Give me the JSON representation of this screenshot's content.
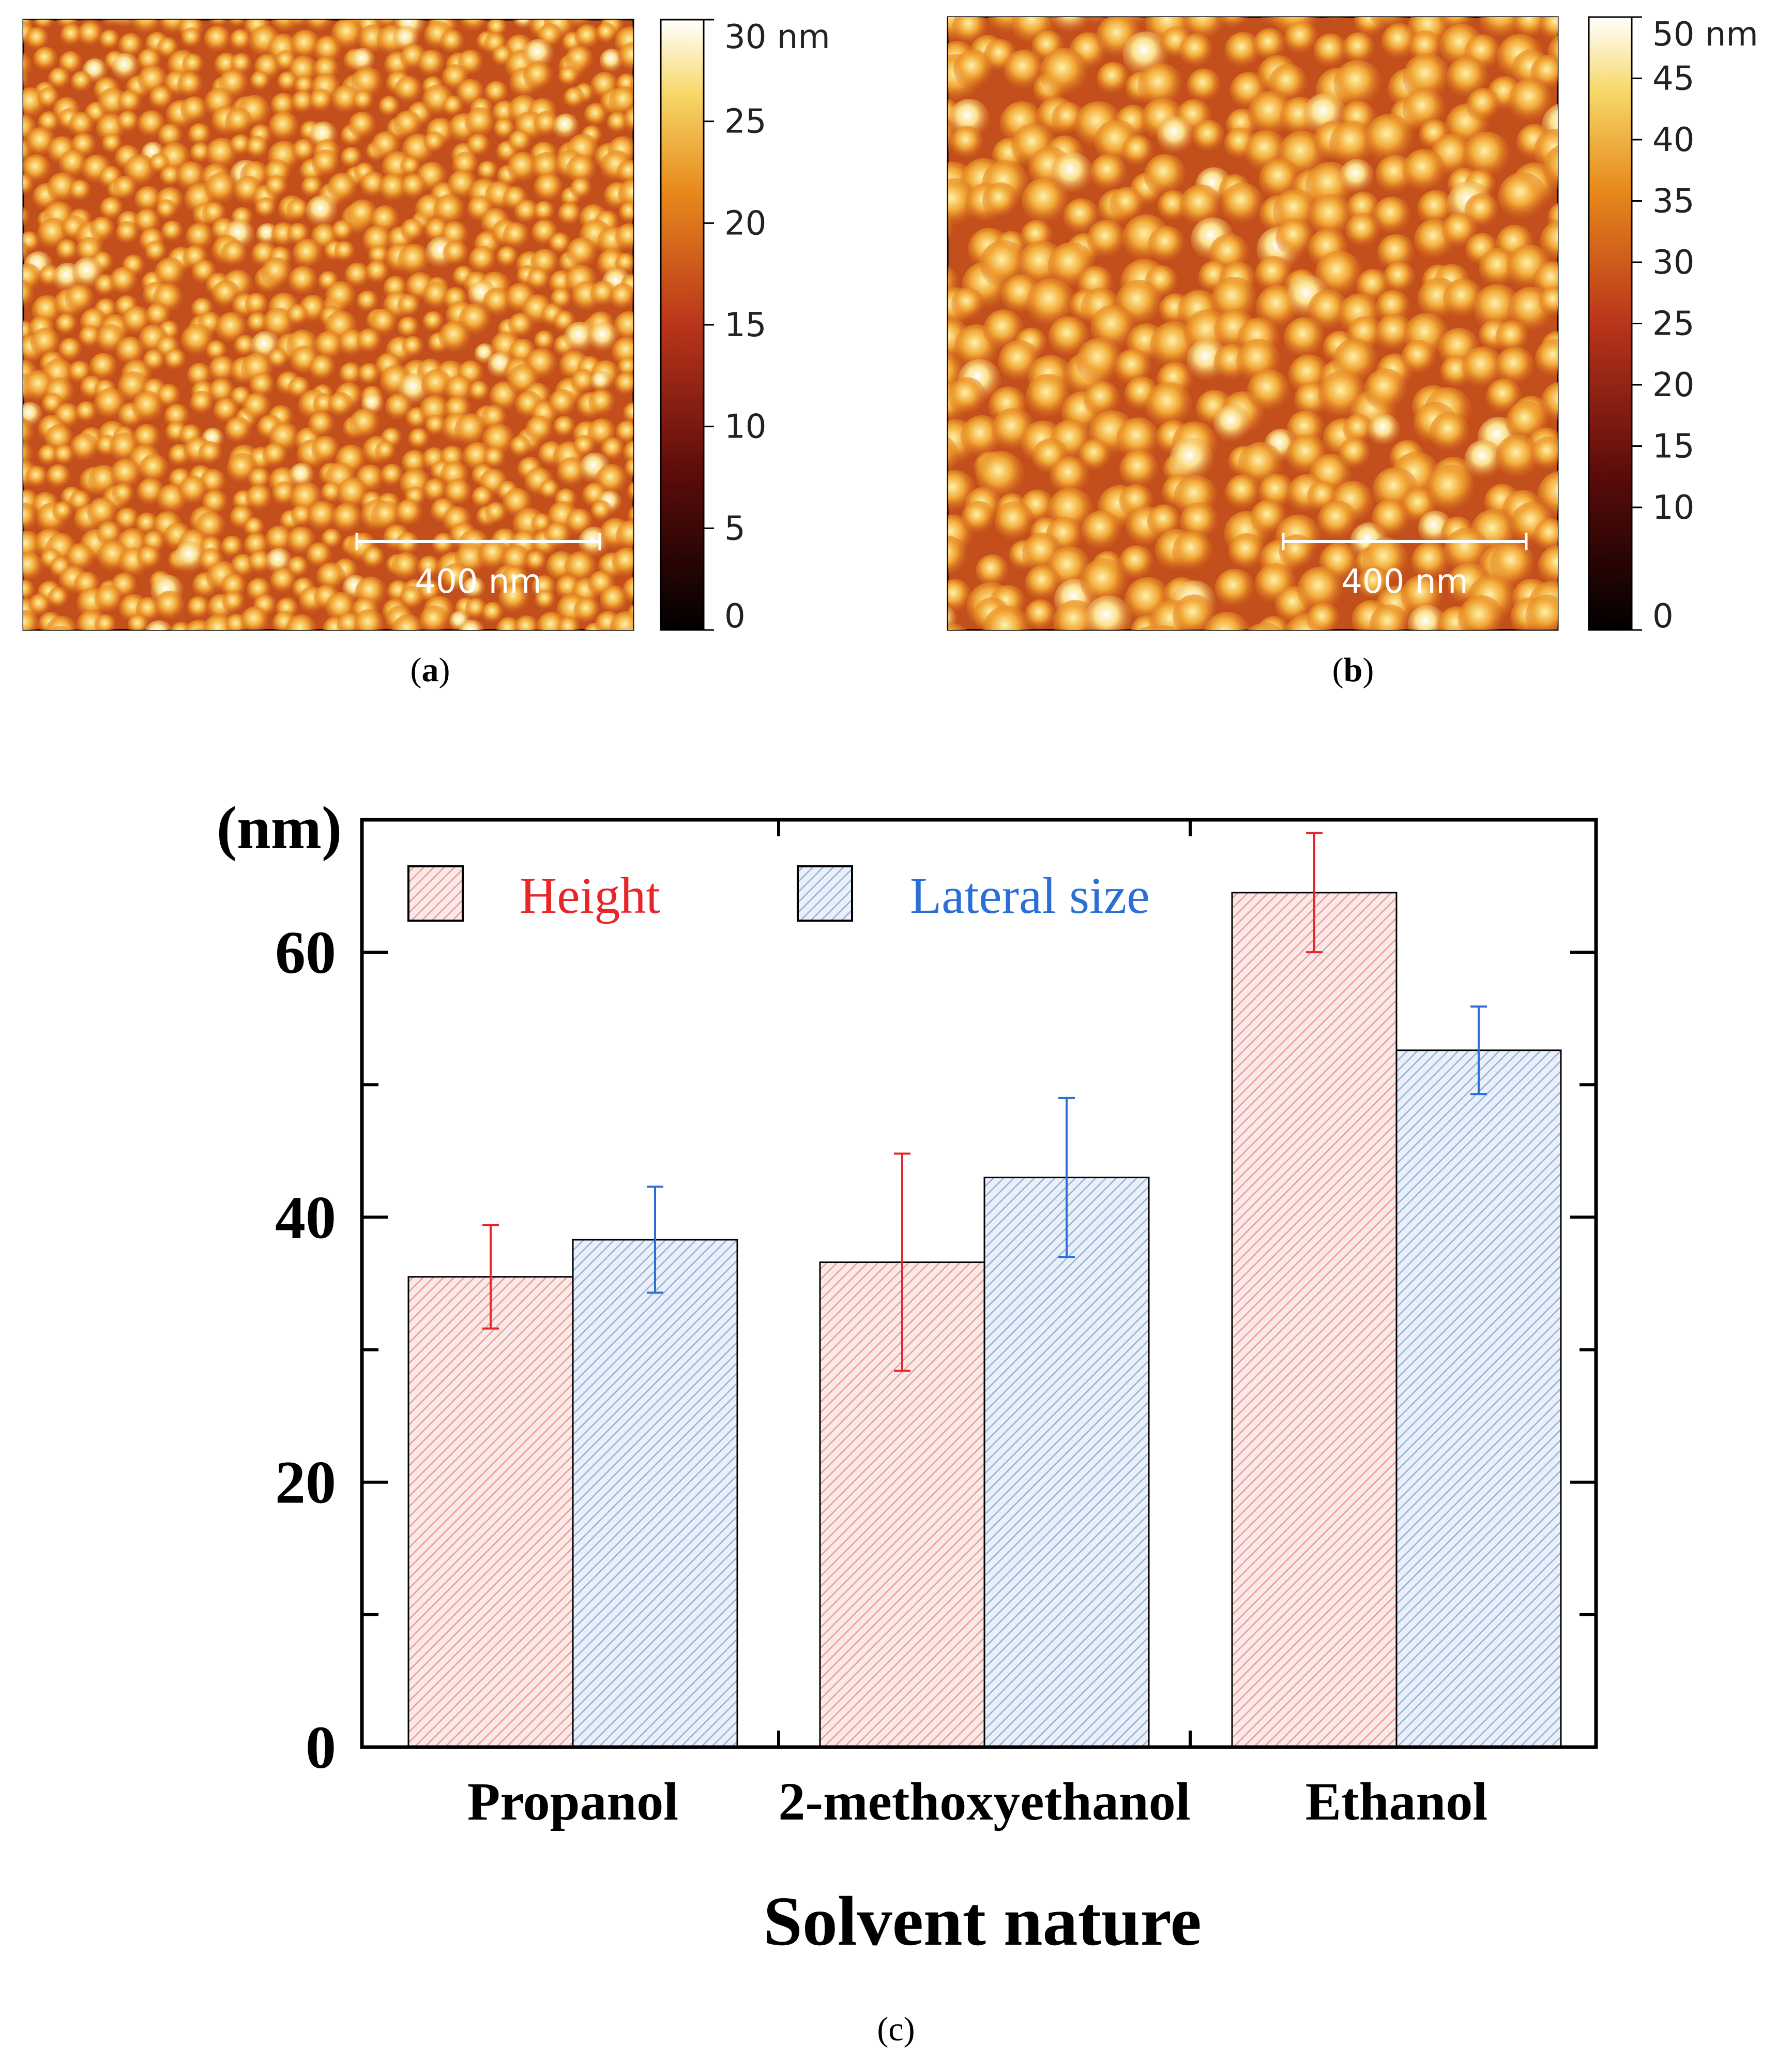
{
  "afm_panels": [
    {
      "panel_label_open": "(",
      "panel_label_letter": "a",
      "panel_label_close": ")",
      "scale_bar_label": "400 nm",
      "colorbar_ticks": [
        {
          "value": 30,
          "label": "30 nm"
        },
        {
          "value": 25,
          "label": "25"
        },
        {
          "value": 20,
          "label": "20"
        },
        {
          "value": 15,
          "label": "15"
        },
        {
          "value": 10,
          "label": "10"
        },
        {
          "value": 5,
          "label": "5"
        },
        {
          "value": 0,
          "label": "0"
        }
      ],
      "colorbar_range": [
        0,
        30
      ]
    },
    {
      "panel_label_open": "(",
      "panel_label_letter": "b",
      "panel_label_close": ")",
      "scale_bar_label": "400 nm",
      "colorbar_ticks": [
        {
          "value": 50,
          "label": "50 nm"
        },
        {
          "value": 45,
          "label": "45"
        },
        {
          "value": 40,
          "label": "40"
        },
        {
          "value": 35,
          "label": "35"
        },
        {
          "value": 30,
          "label": "30"
        },
        {
          "value": 25,
          "label": "25"
        },
        {
          "value": 20,
          "label": "20"
        },
        {
          "value": 15,
          "label": "15"
        },
        {
          "value": 10,
          "label": "10"
        },
        {
          "value": 0,
          "label": "0"
        }
      ],
      "colorbar_range": [
        0,
        50
      ]
    }
  ],
  "colors": {
    "height": "#e8262a",
    "lateral": "#2b6fd6",
    "height_fill": "#f3c8c6",
    "lateral_fill": "#c6d3e8"
  },
  "chart_data": {
    "type": "bar",
    "panel_label": "(c)",
    "categories": [
      "Propanol",
      "2-methoxyethanol",
      "Ethanol"
    ],
    "series": [
      {
        "name": "Height",
        "values": [
          35.5,
          36.6,
          64.5
        ],
        "errors": [
          3.9,
          8.2,
          4.5
        ]
      },
      {
        "name": "Lateral size",
        "values": [
          38.3,
          43.0,
          52.6
        ],
        "errors": [
          4.0,
          6.0,
          3.3
        ]
      }
    ],
    "xlabel": "Solvent nature",
    "ylabel": "(nm)",
    "ylim": [
      0,
      70
    ],
    "yticks": [
      0,
      20,
      40,
      60
    ],
    "ytick_labels": [
      "0",
      "20",
      "40",
      "60"
    ],
    "legend_position": "top-left",
    "grid": false
  }
}
